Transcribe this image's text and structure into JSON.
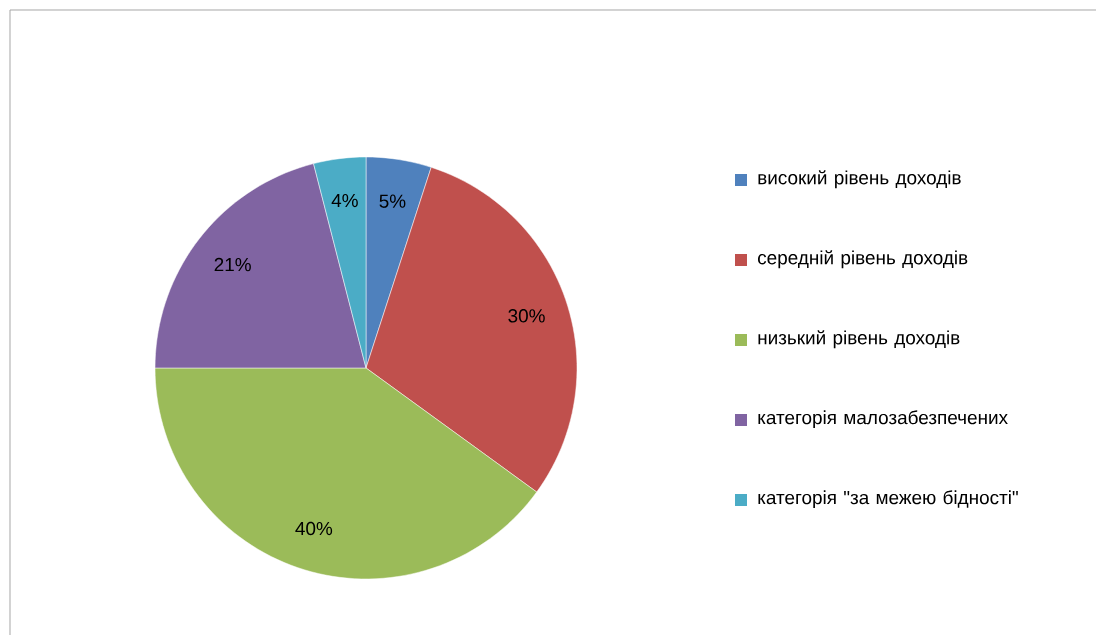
{
  "chart_data": {
    "type": "pie",
    "categories": [
      "високий рівень доходів",
      "середній рівень доходів",
      "низький рівень доходів",
      "категорія малозабезпечених",
      "категорія \"за межею бідності\""
    ],
    "values": [
      5,
      30,
      40,
      21,
      4
    ],
    "value_labels": [
      "5%",
      "30%",
      "40%",
      "21%",
      "4%"
    ],
    "colors": [
      "#4f81bd",
      "#c0504d",
      "#9bbb59",
      "#8064a2",
      "#4bacc6"
    ],
    "legend": "right"
  }
}
